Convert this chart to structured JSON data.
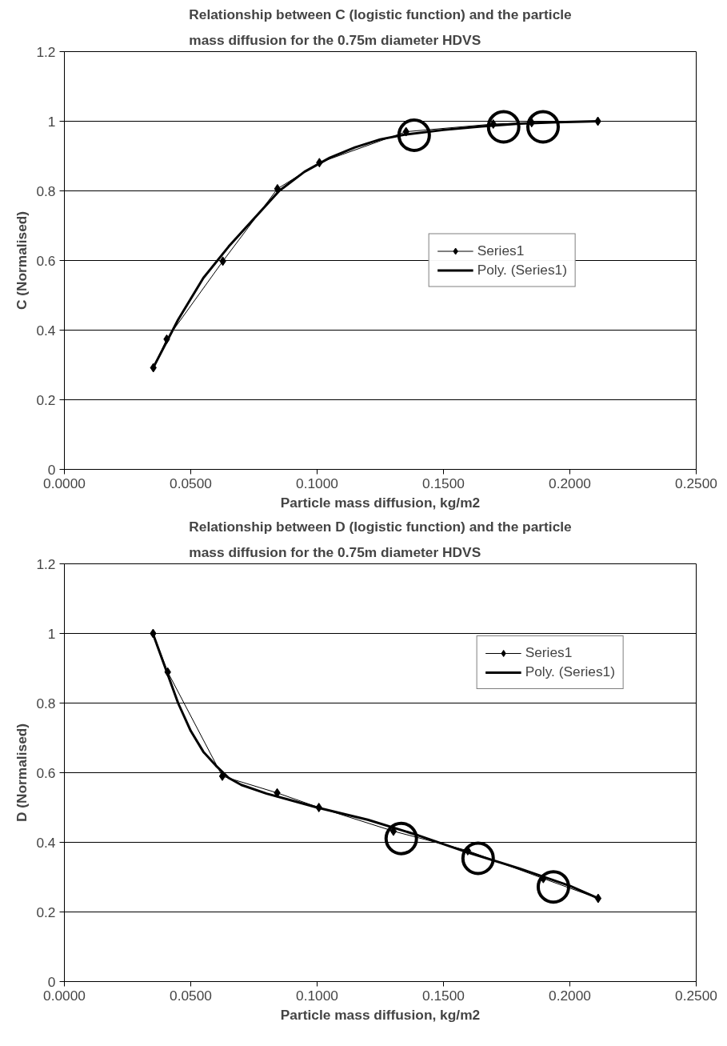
{
  "chart_data": [
    {
      "type": "line",
      "title": "Relationship between C (logistic function) and the particle mass diffusion for the 0.75m diameter HDVS",
      "xlabel": "Particle mass diffusion, kg/m2",
      "ylabel": "C (Normalised)",
      "xlim": [
        0,
        0.25
      ],
      "ylim": [
        0,
        1.2
      ],
      "xticks": [
        {
          "value": 0,
          "label": "0.0000"
        },
        {
          "value": 0.05,
          "label": "0.0500"
        },
        {
          "value": 0.1,
          "label": "0.1000"
        },
        {
          "value": 0.15,
          "label": "0.1500"
        },
        {
          "value": 0.2,
          "label": "0.2000"
        },
        {
          "value": 0.25,
          "label": "0.2500"
        }
      ],
      "yticks": [
        0,
        0.2,
        0.4,
        0.6,
        0.8,
        1,
        1.2
      ],
      "grid": "y",
      "legend": "right",
      "series": [
        {
          "name": "Series1",
          "color": "#000000",
          "marker": "diamond",
          "x": [
            0.0352,
            0.0405,
            0.0627,
            0.0843,
            0.1009,
            0.1352,
            0.1697,
            0.1849,
            0.2111
          ],
          "values": [
            0.292,
            0.374,
            0.598,
            0.806,
            0.881,
            0.97,
            0.992,
            0.996,
            1.0
          ]
        },
        {
          "name": "Poly. (Series1)",
          "color": "#000000",
          "x": [
            0.035,
            0.045,
            0.055,
            0.065,
            0.075,
            0.085,
            0.095,
            0.105,
            0.115,
            0.125,
            0.135,
            0.15,
            0.165,
            0.18,
            0.195,
            0.211
          ],
          "values": [
            0.29,
            0.43,
            0.55,
            0.64,
            0.72,
            0.8,
            0.855,
            0.895,
            0.925,
            0.948,
            0.962,
            0.975,
            0.985,
            0.993,
            0.997,
            1.0
          ]
        },
        {
          "type": "scatter",
          "color": "#000000",
          "marker": "circle",
          "x": [
            0.1384,
            0.1738,
            0.1894
          ],
          "values": [
            0.96,
            0.984,
            0.984
          ]
        }
      ]
    },
    {
      "type": "line",
      "title": "Relationship between D (logistic function) and the particle mass diffusion for the 0.75m diameter HDVS",
      "xlabel": "Particle mass diffusion, kg/m2",
      "ylabel": "D (Normalised)",
      "xlim": [
        0,
        0.25
      ],
      "ylim": [
        0,
        1.2
      ],
      "xticks": [
        {
          "value": 0,
          "label": "0.0000"
        },
        {
          "value": 0.05,
          "label": "0.0500"
        },
        {
          "value": 0.1,
          "label": "0.1000"
        },
        {
          "value": 0.15,
          "label": "0.1500"
        },
        {
          "value": 0.2,
          "label": "0.2000"
        },
        {
          "value": 0.25,
          "label": "0.2500"
        }
      ],
      "yticks": [
        0,
        0.2,
        0.4,
        0.6,
        0.8,
        1,
        1.2
      ],
      "grid": "y",
      "legend": "top right",
      "series": [
        {
          "name": "Series1",
          "color": "#000000",
          "marker": "diamond",
          "x": [
            0.0351,
            0.0409,
            0.0625,
            0.0842,
            0.1007,
            0.1302,
            0.1596,
            0.1895,
            0.2112
          ],
          "values": [
            1.0,
            0.889,
            0.59,
            0.542,
            0.5,
            0.432,
            0.376,
            0.296,
            0.239
          ]
        },
        {
          "name": "Poly. (Series1)",
          "color": "#000000",
          "x": [
            0.035,
            0.04,
            0.045,
            0.05,
            0.055,
            0.06,
            0.065,
            0.07,
            0.08,
            0.09,
            0.1,
            0.12,
            0.14,
            0.16,
            0.18,
            0.2,
            0.211
          ],
          "values": [
            1.0,
            0.9,
            0.8,
            0.72,
            0.66,
            0.62,
            0.585,
            0.565,
            0.54,
            0.52,
            0.5,
            0.465,
            0.42,
            0.37,
            0.325,
            0.275,
            0.24
          ]
        },
        {
          "type": "scatter",
          "color": "#000000",
          "marker": "circle",
          "x": [
            0.1333,
            0.1637,
            0.1935
          ],
          "values": [
            0.411,
            0.354,
            0.272
          ]
        }
      ]
    }
  ]
}
